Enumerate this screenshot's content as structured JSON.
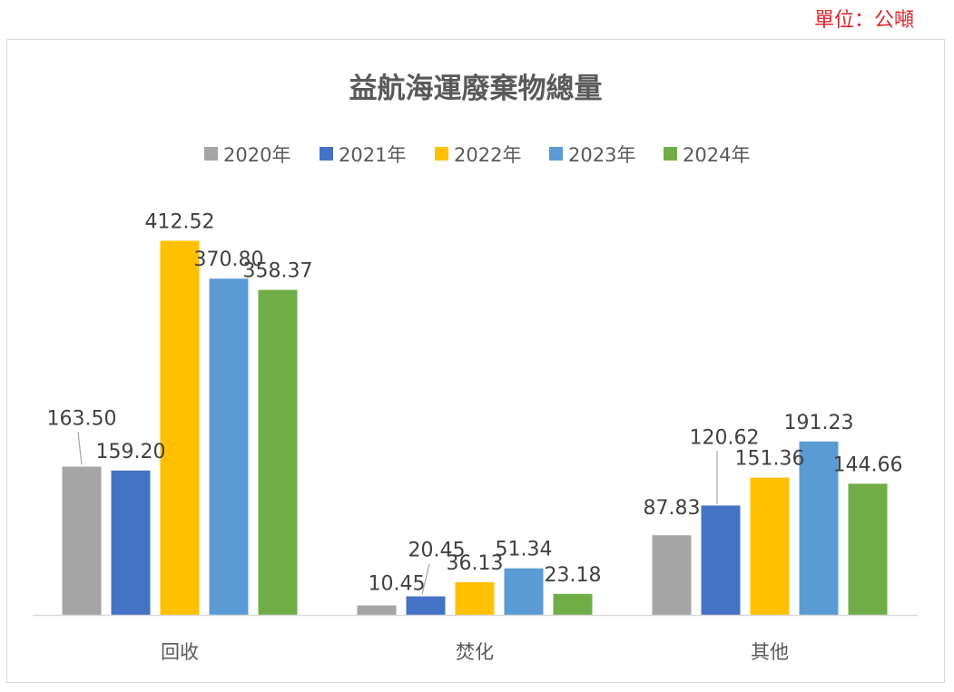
{
  "unit_label": "單位：公噸",
  "chart_data": {
    "type": "bar",
    "title": "益航海運廢棄物總量",
    "categories": [
      "回收",
      "焚化",
      "其他"
    ],
    "series": [
      {
        "name": "2020年",
        "color": "#a5a5a5",
        "values": [
          163.5,
          10.45,
          87.83
        ],
        "labels": [
          "163.50",
          "10.45",
          "87.83"
        ]
      },
      {
        "name": "2021年",
        "color": "#4472c4",
        "values": [
          159.2,
          20.45,
          120.62
        ],
        "labels": [
          "159.20",
          "20.45",
          "120.62"
        ]
      },
      {
        "name": "2022年",
        "color": "#ffc000",
        "values": [
          412.52,
          36.13,
          151.36
        ],
        "labels": [
          "412.52",
          "36.13",
          "151.36"
        ]
      },
      {
        "name": "2023年",
        "color": "#5b9bd5",
        "values": [
          370.8,
          51.34,
          191.23
        ],
        "labels": [
          "370.80",
          "51.34",
          "191.23"
        ]
      },
      {
        "name": "2024年",
        "color": "#70ad47",
        "values": [
          358.37,
          23.18,
          144.66
        ],
        "labels": [
          "358.37",
          "23.18",
          "144.66"
        ]
      }
    ],
    "legend_position": "top",
    "grid": false
  }
}
